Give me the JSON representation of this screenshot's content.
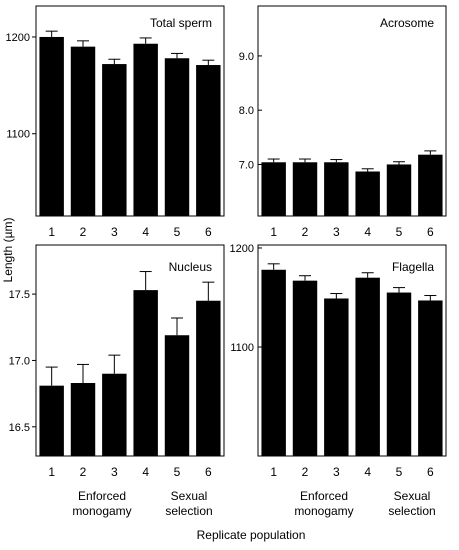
{
  "figure": {
    "ylabel": "Length (µm)",
    "xlabel": "Replicate population",
    "group_labels": [
      {
        "line1": "Enforced",
        "line2": "monogamy"
      },
      {
        "line1": "Sexual",
        "line2": "selection"
      }
    ]
  },
  "chart_data": [
    {
      "type": "bar",
      "title": "Total sperm",
      "categories": [
        "1",
        "2",
        "3",
        "4",
        "5",
        "6"
      ],
      "values": [
        1200,
        1190,
        1172,
        1193,
        1178,
        1171
      ],
      "errors": [
        6,
        6,
        5,
        6,
        5,
        5
      ],
      "yticks": [
        {
          "v": 1100,
          "label": "1100"
        },
        {
          "v": 1200,
          "label": "1200"
        }
      ],
      "ylim": [
        1015,
        1232
      ],
      "bar_color": "#000000"
    },
    {
      "type": "bar",
      "title": "Acrosome",
      "categories": [
        "1",
        "2",
        "3",
        "4",
        "5",
        "6"
      ],
      "values": [
        7.04,
        7.04,
        7.04,
        6.87,
        7.0,
        7.18
      ],
      "errors": [
        0.06,
        0.06,
        0.05,
        0.05,
        0.05,
        0.07
      ],
      "yticks": [
        {
          "v": 7.0,
          "label": "7.0"
        },
        {
          "v": 8.0,
          "label": "8.0"
        },
        {
          "v": 9.0,
          "label": "9.0"
        }
      ],
      "ylim": [
        6.05,
        9.92
      ],
      "bar_color": "#000000"
    },
    {
      "type": "bar",
      "title": "Nucleus",
      "categories": [
        "1",
        "2",
        "3",
        "4",
        "5",
        "6"
      ],
      "values": [
        16.81,
        16.83,
        16.9,
        17.53,
        17.19,
        17.45
      ],
      "errors": [
        0.14,
        0.14,
        0.14,
        0.14,
        0.13,
        0.14
      ],
      "yticks": [
        {
          "v": 16.5,
          "label": "16.5"
        },
        {
          "v": 17.0,
          "label": "17.0"
        },
        {
          "v": 17.5,
          "label": "17.5"
        }
      ],
      "ylim": [
        16.28,
        17.87
      ],
      "bar_color": "#000000"
    },
    {
      "type": "bar",
      "title": "Flagella",
      "categories": [
        "1",
        "2",
        "3",
        "4",
        "5",
        "6"
      ],
      "values": [
        1178,
        1167,
        1149,
        1170,
        1155,
        1147
      ],
      "errors": [
        6,
        5,
        5,
        5,
        5,
        5
      ],
      "yticks": [
        {
          "v": 1100,
          "label": "1100"
        },
        {
          "v": 1200,
          "label": "1200"
        }
      ],
      "ylim": [
        990,
        1203
      ],
      "bar_color": "#000000"
    }
  ]
}
